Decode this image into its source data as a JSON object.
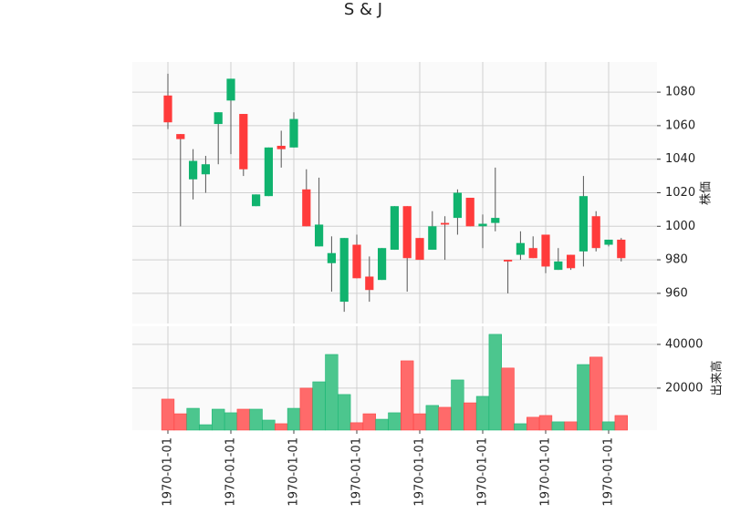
{
  "chart_data": {
    "type": "candlestick",
    "title": "S & J",
    "categories": [
      "1970-01-01",
      null,
      null,
      null,
      null,
      "1970-01-01",
      null,
      null,
      null,
      null,
      "1970-01-01",
      null,
      null,
      null,
      null,
      "1970-01-01",
      null,
      null,
      null,
      null,
      "1970-01-01",
      null,
      null,
      null,
      null,
      "1970-01-01",
      null,
      null,
      null,
      null,
      "1970-01-01",
      null,
      null,
      null,
      null,
      "1970-01-01",
      null
    ],
    "open": [
      1078,
      1055,
      1028,
      1031,
      1061,
      1075,
      1067,
      1012,
      1018,
      1048,
      1047,
      1022,
      988,
      978,
      955,
      989,
      970,
      968,
      986,
      1012,
      993,
      986,
      1002,
      1005,
      1017,
      1000,
      1002,
      980,
      983,
      987,
      995,
      974,
      983,
      985,
      1006,
      989,
      992
    ],
    "high": [
      1091,
      1055,
      1046,
      1042,
      1068,
      1088,
      1067,
      1019,
      1047,
      1057,
      1068,
      1034,
      1029,
      994,
      993,
      995,
      982,
      987,
      1012,
      1012,
      993,
      1009,
      1006,
      1022,
      1017,
      1007,
      1035,
      980,
      997,
      994,
      995,
      987,
      983,
      1030,
      1009,
      992,
      993
    ],
    "low": [
      1058,
      1000,
      1016,
      1020,
      1037,
      1043,
      1030,
      1012,
      1018,
      1035,
      1047,
      1000,
      988,
      961,
      949,
      969,
      955,
      968,
      986,
      961,
      980,
      986,
      980,
      995,
      1000,
      987,
      997,
      960,
      980,
      981,
      972,
      974,
      974,
      976,
      985,
      988,
      979
    ],
    "close": [
      1062,
      1052,
      1039,
      1037,
      1068,
      1088,
      1034,
      1019,
      1047,
      1046,
      1064,
      1000,
      1001,
      984,
      993,
      969,
      962,
      987,
      1012,
      981,
      980,
      1000,
      1001,
      1020,
      1000,
      1001.5,
      1005,
      979,
      990,
      981,
      976,
      979,
      975,
      1018,
      987,
      992,
      981
    ],
    "volume": [
      15000,
      8300,
      10800,
      3300,
      10400,
      8750,
      10400,
      10400,
      5400,
      3750,
      10800,
      20000,
      22900,
      35400,
      17100,
      4200,
      8300,
      5800,
      8750,
      32500,
      8300,
      12100,
      11250,
      23750,
      13300,
      16250,
      44600,
      29200,
      3750,
      6700,
      7500,
      4600,
      4600,
      30800,
      34200,
      4600,
      7500
    ],
    "ylabel": "株価",
    "ylim": [
      942,
      1098
    ],
    "yticks": [
      960,
      980,
      1000,
      1020,
      1040,
      1060,
      1080
    ],
    "volume_ylabel": "出来高",
    "volume_ylim": [
      800,
      48300
    ],
    "volume_yticks": [
      20000,
      40000
    ],
    "up_color": "#10b36e",
    "down_color": "#ff3b3b",
    "up_volume_color": "#4cc68e",
    "down_volume_color": "#ff6a6a",
    "grid": true
  }
}
